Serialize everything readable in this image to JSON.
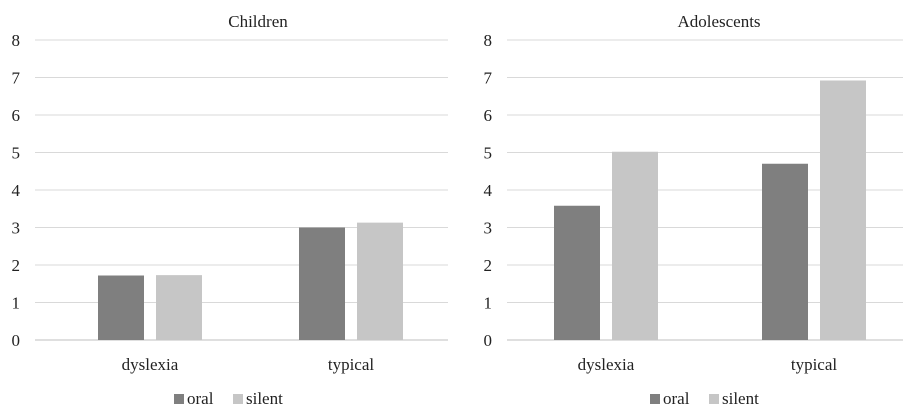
{
  "chart_data": [
    {
      "type": "bar",
      "title": "Children",
      "categories": [
        "dyslexia",
        "typical"
      ],
      "series": [
        {
          "name": "oral",
          "values": [
            1.72,
            3.0
          ],
          "color": "#7f7f7f"
        },
        {
          "name": "silent",
          "values": [
            1.73,
            3.13
          ],
          "color": "#c6c6c6"
        }
      ],
      "ylim": [
        0,
        8
      ],
      "yticks": [
        0,
        1,
        2,
        3,
        4,
        5,
        6,
        7,
        8
      ],
      "xlabel": "",
      "ylabel": "",
      "grid": true,
      "legend_position": "bottom"
    },
    {
      "type": "bar",
      "title": "Adolescents",
      "categories": [
        "dyslexia",
        "typical"
      ],
      "series": [
        {
          "name": "oral",
          "values": [
            3.58,
            4.7
          ],
          "color": "#7f7f7f"
        },
        {
          "name": "silent",
          "values": [
            5.02,
            6.92
          ],
          "color": "#c6c6c6"
        }
      ],
      "ylim": [
        0,
        8
      ],
      "yticks": [
        0,
        1,
        2,
        3,
        4,
        5,
        6,
        7,
        8
      ],
      "xlabel": "",
      "ylabel": "",
      "grid": true,
      "legend_position": "bottom"
    }
  ],
  "colors": {
    "axis": "#d9d9d9",
    "grid": "#d9d9d9",
    "text": "#222222"
  }
}
